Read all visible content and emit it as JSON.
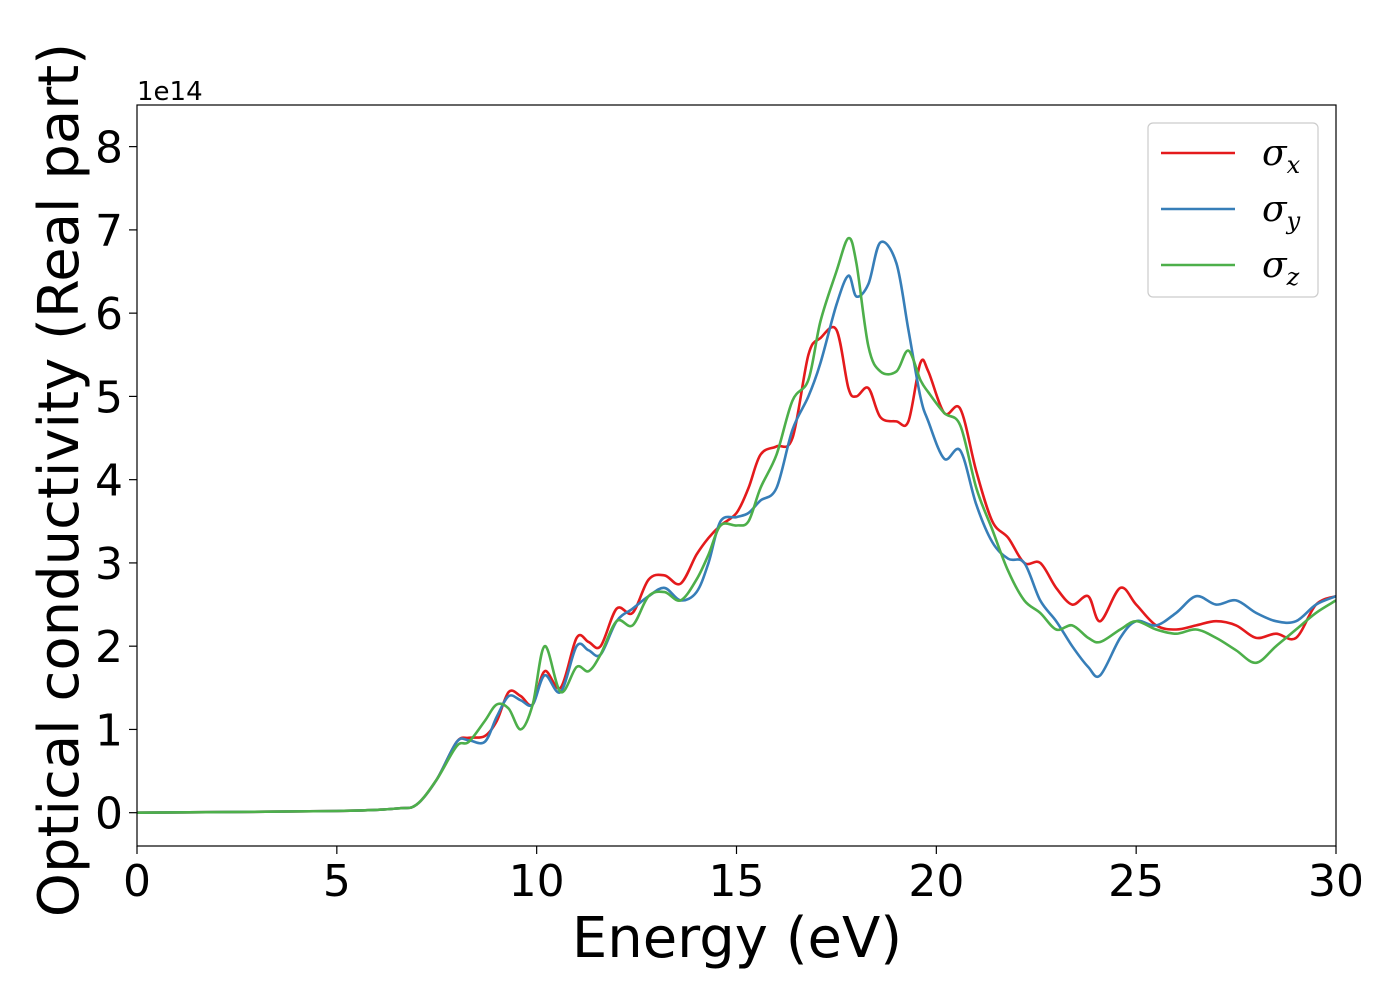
{
  "chart_data": {
    "type": "line",
    "title": "",
    "xlabel": "Energy (eV)",
    "ylabel": "Optical conductivity (Real part)",
    "y_offset_text": "1e14",
    "xlim": [
      0,
      30
    ],
    "ylim": [
      -0.4,
      8.5
    ],
    "x_ticks": [
      0,
      5,
      10,
      15,
      20,
      25,
      30
    ],
    "y_ticks": [
      0,
      1,
      2,
      3,
      4,
      5,
      6,
      7,
      8
    ],
    "grid": false,
    "legend_position": "top-right",
    "series": [
      {
        "name": "σx",
        "name_base": "σ",
        "name_sub": "x",
        "color": "#e41a1c",
        "x": [
          0,
          5,
          6.5,
          7,
          7.5,
          8,
          8.3,
          8.7,
          9,
          9.3,
          9.6,
          9.9,
          10.2,
          10.6,
          11,
          11.3,
          11.6,
          12,
          12.4,
          12.8,
          13.2,
          13.6,
          14,
          14.3,
          14.6,
          15,
          15.3,
          15.6,
          16,
          16.4,
          16.8,
          17.1,
          17.5,
          17.8,
          18,
          18.3,
          18.6,
          19,
          19.3,
          19.6,
          19.8,
          20.2,
          20.6,
          21,
          21.4,
          21.8,
          22.2,
          22.6,
          23,
          23.4,
          23.8,
          24.1,
          24.6,
          25,
          25.5,
          26,
          26.5,
          27,
          27.5,
          28,
          28.5,
          29,
          29.5,
          30
        ],
        "y": [
          0,
          0.02,
          0.05,
          0.1,
          0.4,
          0.85,
          0.9,
          0.92,
          1.1,
          1.45,
          1.4,
          1.3,
          1.7,
          1.5,
          2.1,
          2.05,
          2.0,
          2.45,
          2.4,
          2.8,
          2.85,
          2.75,
          3.1,
          3.3,
          3.45,
          3.6,
          3.9,
          4.3,
          4.4,
          4.5,
          5.5,
          5.7,
          5.8,
          5.1,
          5.0,
          5.1,
          4.75,
          4.7,
          4.7,
          5.4,
          5.3,
          4.8,
          4.85,
          4.1,
          3.5,
          3.3,
          3.0,
          3.0,
          2.7,
          2.5,
          2.6,
          2.3,
          2.7,
          2.5,
          2.25,
          2.2,
          2.25,
          2.3,
          2.25,
          2.1,
          2.15,
          2.1,
          2.5,
          2.6
        ]
      },
      {
        "name": "σy",
        "name_base": "σ",
        "name_sub": "y",
        "color": "#377eb8",
        "x": [
          0,
          5,
          6.5,
          7,
          7.5,
          8,
          8.3,
          8.7,
          9,
          9.3,
          9.6,
          9.9,
          10.2,
          10.6,
          11,
          11.3,
          11.6,
          12,
          12.4,
          12.8,
          13.2,
          13.6,
          14,
          14.3,
          14.6,
          15,
          15.3,
          15.6,
          16,
          16.4,
          16.8,
          17.1,
          17.5,
          17.8,
          18,
          18.3,
          18.6,
          19,
          19.3,
          19.6,
          19.8,
          20.2,
          20.6,
          21,
          21.4,
          21.8,
          22.2,
          22.6,
          23,
          23.4,
          23.8,
          24.1,
          24.6,
          25,
          25.5,
          26,
          26.5,
          27,
          27.5,
          28,
          28.5,
          29,
          29.5,
          30
        ],
        "y": [
          0,
          0.02,
          0.05,
          0.1,
          0.4,
          0.85,
          0.87,
          0.85,
          1.15,
          1.4,
          1.35,
          1.3,
          1.65,
          1.45,
          2.0,
          1.95,
          1.9,
          2.3,
          2.45,
          2.6,
          2.7,
          2.55,
          2.65,
          3.0,
          3.5,
          3.55,
          3.6,
          3.75,
          3.9,
          4.6,
          5.0,
          5.4,
          6.1,
          6.45,
          6.2,
          6.35,
          6.85,
          6.6,
          5.8,
          5.0,
          4.7,
          4.25,
          4.35,
          3.7,
          3.25,
          3.05,
          3.0,
          2.55,
          2.3,
          2.0,
          1.75,
          1.65,
          2.1,
          2.3,
          2.25,
          2.4,
          2.6,
          2.5,
          2.55,
          2.4,
          2.3,
          2.3,
          2.5,
          2.6
        ]
      },
      {
        "name": "σz",
        "name_base": "σ",
        "name_sub": "z",
        "color": "#4daf4a",
        "x": [
          0,
          5,
          6.5,
          7,
          7.5,
          8,
          8.3,
          8.7,
          9,
          9.3,
          9.6,
          9.9,
          10.2,
          10.6,
          11,
          11.3,
          11.6,
          12,
          12.4,
          12.8,
          13.2,
          13.6,
          14,
          14.3,
          14.6,
          15,
          15.3,
          15.6,
          16,
          16.4,
          16.8,
          17.1,
          17.5,
          17.8,
          18,
          18.3,
          18.6,
          19,
          19.3,
          19.6,
          19.8,
          20.2,
          20.6,
          21,
          21.4,
          21.8,
          22.2,
          22.6,
          23,
          23.4,
          23.8,
          24.1,
          24.6,
          25,
          25.5,
          26,
          26.5,
          27,
          27.5,
          28,
          28.5,
          29,
          29.5,
          30
        ],
        "y": [
          0,
          0.02,
          0.05,
          0.1,
          0.4,
          0.8,
          0.85,
          1.1,
          1.3,
          1.25,
          1.0,
          1.3,
          2.0,
          1.45,
          1.75,
          1.7,
          1.9,
          2.3,
          2.25,
          2.6,
          2.65,
          2.55,
          2.8,
          3.1,
          3.45,
          3.45,
          3.5,
          3.9,
          4.3,
          4.95,
          5.2,
          5.9,
          6.5,
          6.9,
          6.6,
          5.6,
          5.3,
          5.3,
          5.55,
          5.2,
          5.05,
          4.8,
          4.65,
          3.9,
          3.4,
          2.9,
          2.55,
          2.4,
          2.2,
          2.25,
          2.1,
          2.05,
          2.2,
          2.3,
          2.2,
          2.15,
          2.2,
          2.1,
          1.95,
          1.8,
          2.0,
          2.2,
          2.4,
          2.55
        ]
      }
    ]
  }
}
